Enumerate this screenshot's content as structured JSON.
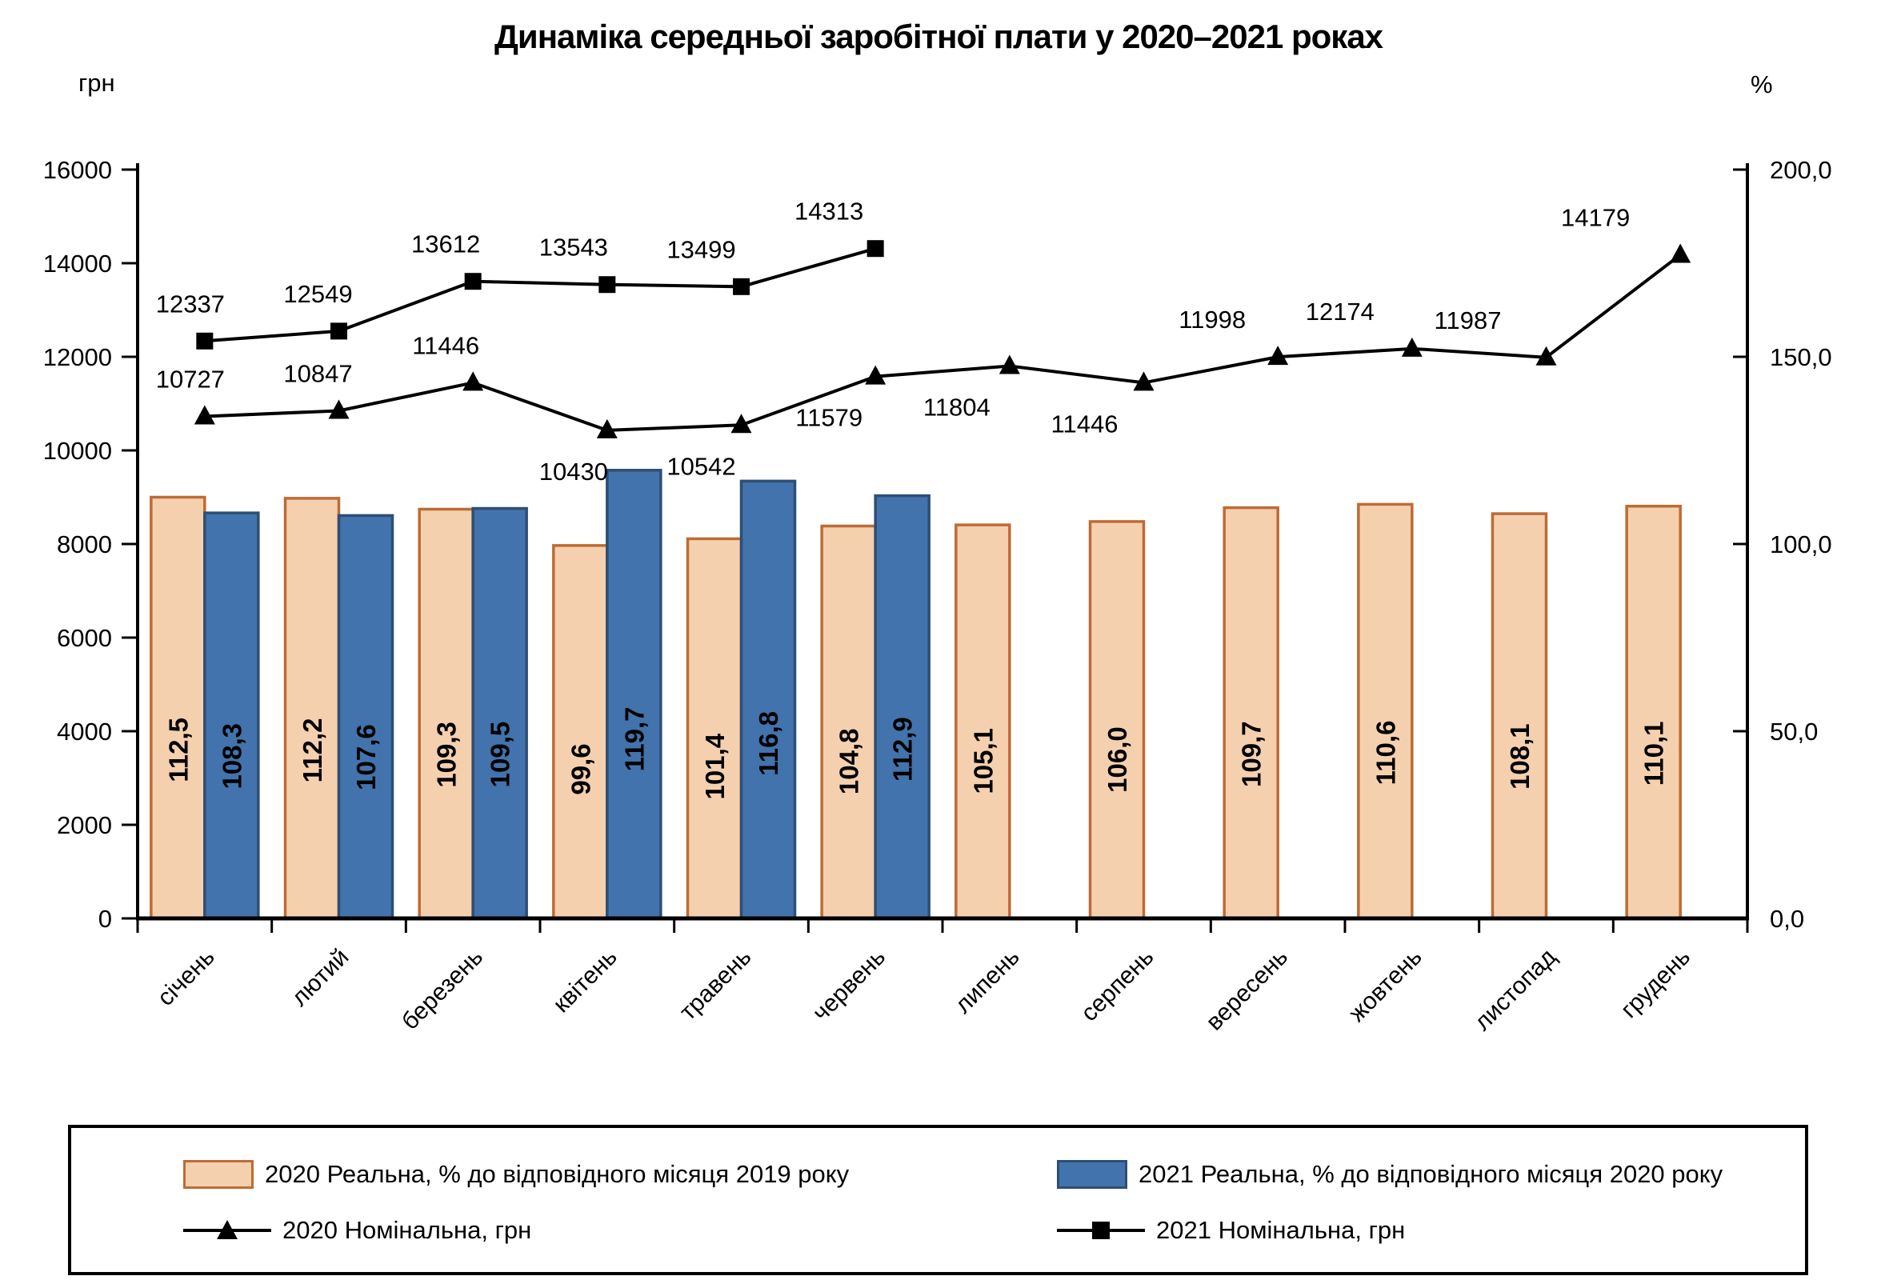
{
  "title": "Динаміка середньої заробітної плати у 2020–2021 роках",
  "left_axis": {
    "unit": "грн",
    "min": 0,
    "max": 16000,
    "ticks": [
      "16000",
      "14000",
      "12000",
      "10000",
      "8000",
      "6000",
      "4000",
      "2000",
      "0"
    ]
  },
  "right_axis": {
    "unit": "%",
    "min": 0,
    "max": 200,
    "ticks": [
      "200,0",
      "150,0",
      "100,0",
      "50,0",
      "0,0"
    ]
  },
  "chart_data": {
    "type": "combo",
    "categories": [
      "січень",
      "лютий",
      "березень",
      "квітень",
      "травень",
      "червень",
      "липень",
      "серпень",
      "вересень",
      "жовтень",
      "листопад",
      "грудень"
    ],
    "legend_position": "bottom",
    "grid": false,
    "series": [
      {
        "name": "2020 Реальна, % до відповідного місяця 2019 року",
        "kind": "bar",
        "axis": "right",
        "color": "#F5D0AF",
        "border": "#BE6B35",
        "values": [
          112.5,
          112.2,
          109.3,
          99.6,
          101.4,
          104.8,
          105.1,
          106.0,
          109.7,
          110.6,
          108.1,
          110.1
        ],
        "labels": [
          "112,5",
          "112,2",
          "109,3",
          "99,6",
          "101,4",
          "104,8",
          "105,1",
          "106,0",
          "109,7",
          "110,6",
          "108,1",
          "110,1"
        ]
      },
      {
        "name": "2021 Реальна, % до відповідного місяця 2020 року",
        "kind": "bar",
        "axis": "right",
        "color": "#4273AC",
        "border": "#2E4E74",
        "values": [
          108.3,
          107.6,
          109.5,
          119.7,
          116.8,
          112.9
        ],
        "labels": [
          "108,3",
          "107,6",
          "109,5",
          "119,7",
          "116,8",
          "112,9"
        ]
      },
      {
        "name": "2020 Номінальна, грн",
        "kind": "line",
        "axis": "left",
        "marker": "triangle",
        "color": "#000000",
        "values": [
          10727,
          10847,
          11446,
          10430,
          10542,
          11579,
          11804,
          11446,
          11998,
          12174,
          11987,
          14179
        ],
        "labels": [
          "10727",
          "10847",
          "11446",
          "10430",
          "10542",
          "11579",
          "11804",
          "11446",
          "11998",
          "12174",
          "11987",
          "14179"
        ],
        "label_side": [
          "above",
          "above",
          "above",
          "below",
          "below",
          "below",
          "below",
          "below",
          "above",
          "above",
          "above",
          "above"
        ]
      },
      {
        "name": "2021 Номінальна, грн",
        "kind": "line",
        "axis": "left",
        "marker": "square",
        "color": "#000000",
        "values": [
          12337,
          12549,
          13612,
          13543,
          13499,
          14313
        ],
        "labels": [
          "12337",
          "12549",
          "13612",
          "13543",
          "13499",
          "14313"
        ],
        "label_side": [
          "above",
          "above",
          "above",
          "above",
          "above",
          "above"
        ]
      }
    ]
  }
}
